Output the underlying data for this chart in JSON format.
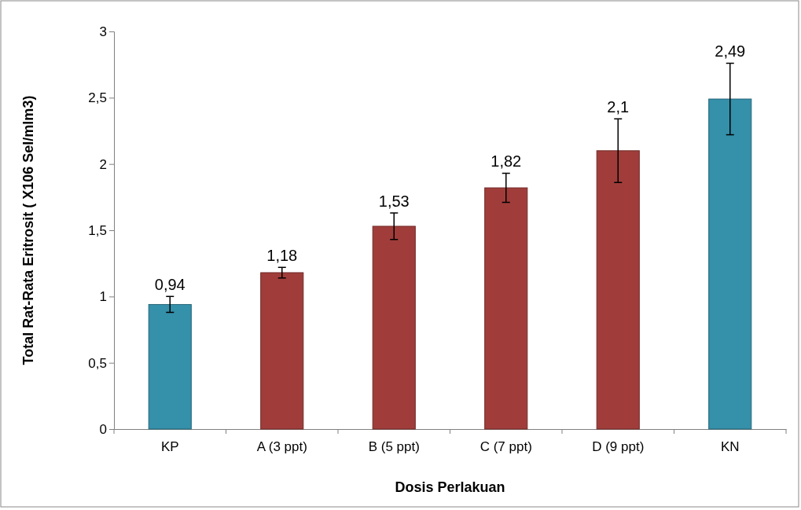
{
  "chart_data": {
    "type": "bar",
    "xlabel": "Dosis Perlakuan",
    "ylabel": "Total Rat-Rata Eritrosit ( X106 Sel/mlm3)",
    "categories": [
      "KP",
      "A (3 ppt)",
      "B (5 ppt)",
      "C (7 ppt)",
      "D (9 ppt)",
      "KN"
    ],
    "values": [
      0.94,
      1.18,
      1.53,
      1.82,
      2.1,
      2.49
    ],
    "colors": [
      "#3590aa",
      "#a03d3a",
      "#a03d3a",
      "#a03d3a",
      "#a03d3a",
      "#3590aa"
    ],
    "errors": [
      0.06,
      0.04,
      0.1,
      0.11,
      0.24,
      0.27
    ],
    "value_labels": [
      "0,94",
      "1,18",
      "1,53",
      "1,82",
      "2,1",
      "2,49"
    ],
    "ylim": [
      0,
      3
    ],
    "yticks": [
      0,
      {
        "value": 0.5,
        "label": "0,5"
      },
      1,
      {
        "value": 1.5,
        "label": "1,5"
      },
      2,
      {
        "value": 2.5,
        "label": "2,5"
      },
      3
    ],
    "grid": false
  }
}
